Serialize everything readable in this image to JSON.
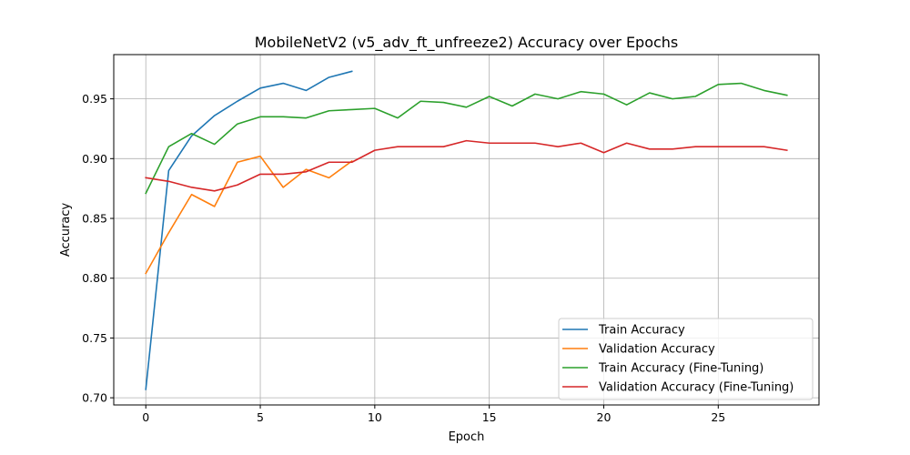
{
  "chart_data": {
    "type": "line",
    "title": "MobileNetV2 (v5_adv_ft_unfreeze2) Accuracy over Epochs",
    "xlabel": "Epoch",
    "ylabel": "Accuracy",
    "xlim": [
      -1.4,
      29.4
    ],
    "ylim": [
      0.694,
      0.987
    ],
    "xticks": [
      0,
      5,
      10,
      15,
      20,
      25
    ],
    "yticks": [
      0.7,
      0.75,
      0.8,
      0.85,
      0.9,
      0.95
    ],
    "xtick_labels": [
      "0",
      "5",
      "10",
      "15",
      "20",
      "25"
    ],
    "ytick_labels": [
      "0.70",
      "0.75",
      "0.80",
      "0.85",
      "0.90",
      "0.95"
    ],
    "grid": true,
    "legend_position": "lower-right",
    "series": [
      {
        "name": "Train Accuracy",
        "color": "#1f77b4",
        "x": [
          0,
          1,
          2,
          3,
          4,
          5,
          6,
          7,
          8,
          9
        ],
        "y": [
          0.707,
          0.89,
          0.919,
          0.936,
          0.948,
          0.959,
          0.963,
          0.957,
          0.968,
          0.973
        ]
      },
      {
        "name": "Validation Accuracy",
        "color": "#ff7f0e",
        "x": [
          0,
          1,
          2,
          3,
          4,
          5,
          6,
          7,
          8,
          9
        ],
        "y": [
          0.804,
          0.838,
          0.87,
          0.86,
          0.897,
          0.902,
          0.876,
          0.891,
          0.884,
          0.898
        ]
      },
      {
        "name": "Train Accuracy (Fine-Tuning)",
        "color": "#2ca02c",
        "x": [
          0,
          1,
          2,
          3,
          4,
          5,
          6,
          7,
          8,
          9,
          10,
          11,
          12,
          13,
          14,
          15,
          16,
          17,
          18,
          19,
          20,
          21,
          22,
          23,
          24,
          25,
          26,
          27,
          28
        ],
        "y": [
          0.871,
          0.91,
          0.921,
          0.912,
          0.929,
          0.935,
          0.935,
          0.934,
          0.94,
          0.941,
          0.942,
          0.934,
          0.948,
          0.947,
          0.943,
          0.952,
          0.944,
          0.954,
          0.95,
          0.956,
          0.954,
          0.945,
          0.955,
          0.95,
          0.952,
          0.962,
          0.963,
          0.957,
          0.953
        ]
      },
      {
        "name": "Validation Accuracy (Fine-Tuning)",
        "color": "#d62728",
        "x": [
          0,
          1,
          2,
          3,
          4,
          5,
          6,
          7,
          8,
          9,
          10,
          11,
          12,
          13,
          14,
          15,
          16,
          17,
          18,
          19,
          20,
          21,
          22,
          23,
          24,
          25,
          26,
          27,
          28
        ],
        "y": [
          0.884,
          0.881,
          0.876,
          0.873,
          0.878,
          0.887,
          0.887,
          0.889,
          0.897,
          0.897,
          0.907,
          0.91,
          0.91,
          0.91,
          0.915,
          0.913,
          0.913,
          0.913,
          0.91,
          0.913,
          0.905,
          0.913,
          0.908,
          0.908,
          0.91,
          0.91,
          0.91,
          0.91,
          0.907
        ]
      }
    ]
  }
}
